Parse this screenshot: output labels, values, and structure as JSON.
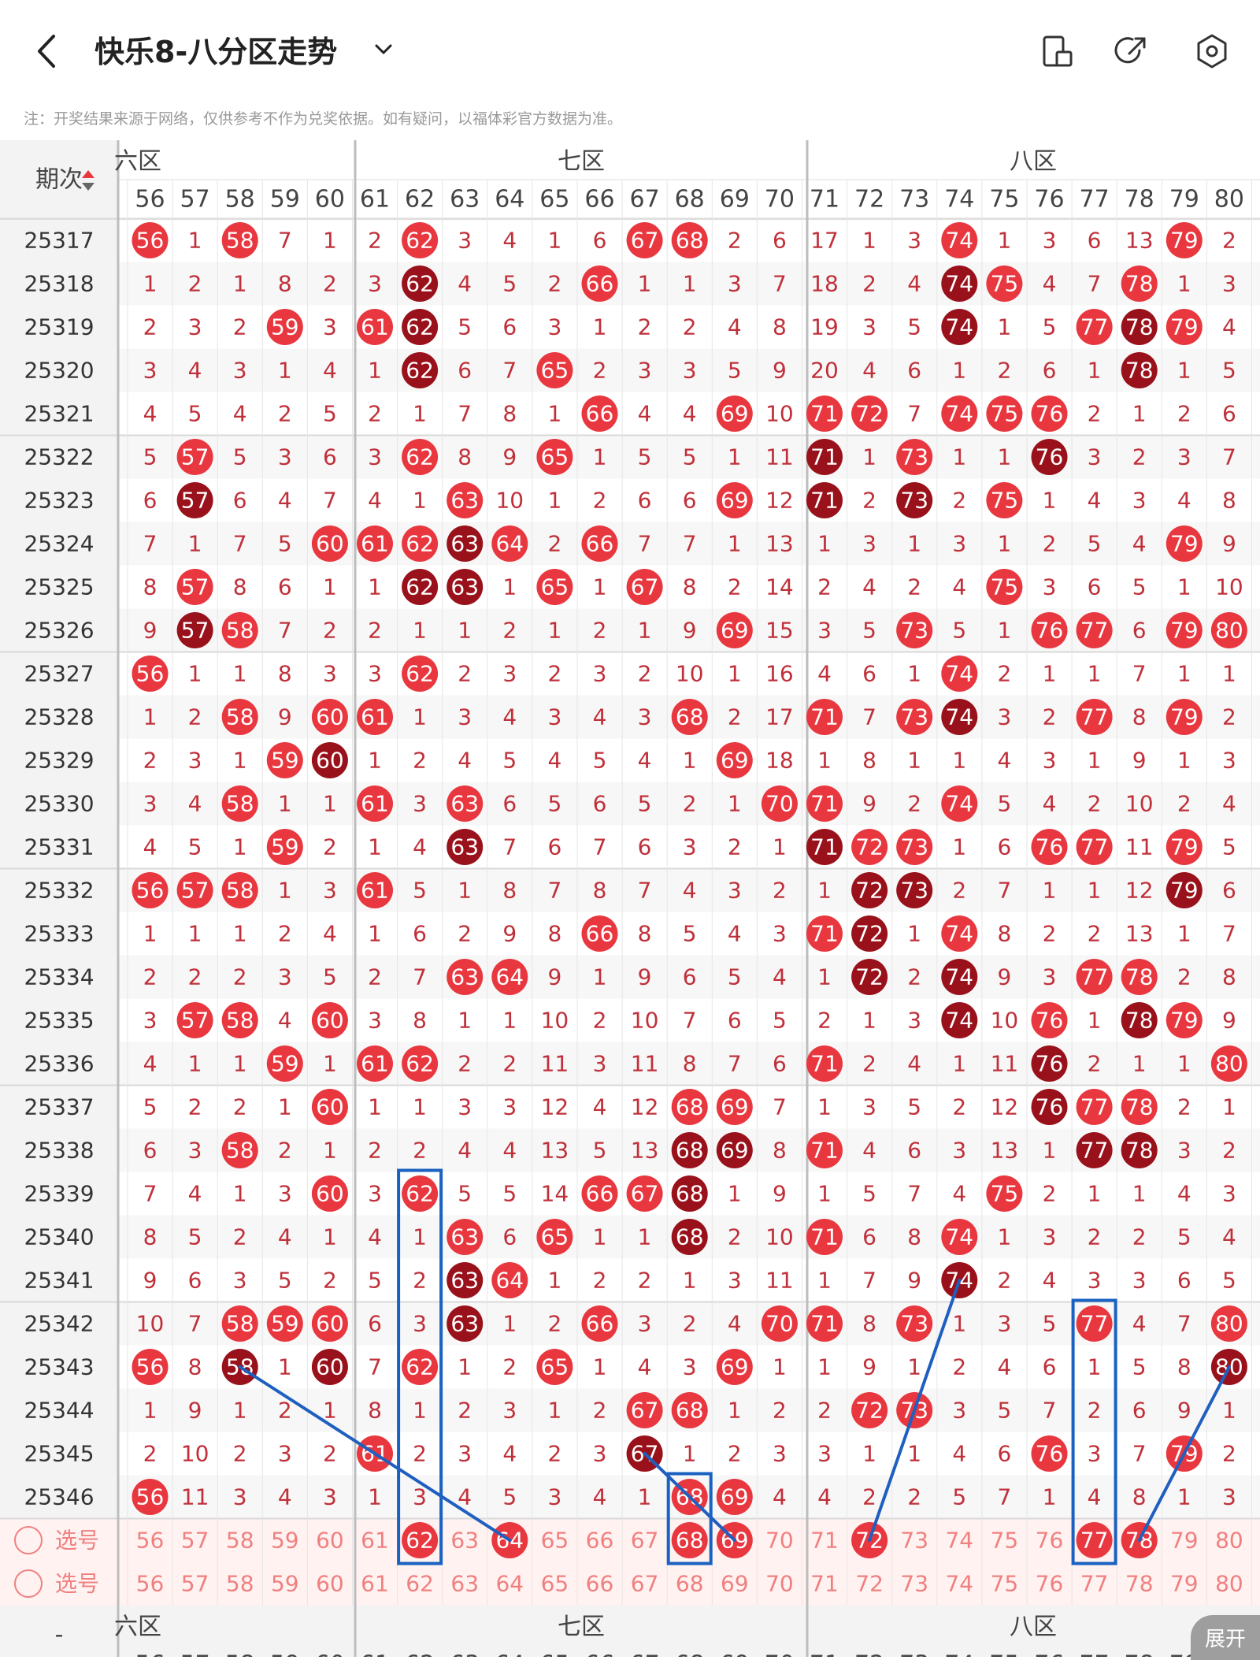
{
  "header": {
    "title": "快乐8-八分区走势"
  },
  "icons": {
    "back": "chevron-left-icon",
    "dropdown": "chevron-down-icon",
    "layout": "layout-icon",
    "share": "share-icon",
    "settings": "settings-icon"
  },
  "notice": "注：开奖结果来源于网络，仅供参考不作为兑奖依据。如有疑问，以福体彩官方数据为准。",
  "table": {
    "period_label": "期次",
    "zones": [
      {
        "name": "六区",
        "label": "六区"
      },
      {
        "name": "七区",
        "label": "七区"
      },
      {
        "name": "八区",
        "label": "八区"
      }
    ],
    "columns": [
      56,
      57,
      58,
      59,
      60,
      61,
      62,
      63,
      64,
      65,
      66,
      67,
      68,
      69,
      70,
      71,
      72,
      73,
      74,
      75,
      76,
      77,
      78,
      79,
      80
    ],
    "rows": [
      {
        "p": "25317",
        "v": [
          "56",
          1,
          "58",
          7,
          1,
          2,
          "62",
          3,
          4,
          1,
          6,
          "67",
          "68",
          2,
          6,
          17,
          1,
          3,
          "74",
          1,
          3,
          6,
          13,
          "79",
          2
        ]
      },
      {
        "p": "25318",
        "v": [
          1,
          2,
          1,
          8,
          2,
          3,
          "62",
          4,
          5,
          2,
          "66",
          1,
          1,
          3,
          7,
          18,
          2,
          4,
          "74",
          "75",
          4,
          7,
          "78",
          1,
          3
        ]
      },
      {
        "p": "25319",
        "v": [
          2,
          3,
          2,
          "59",
          3,
          "61",
          "62",
          5,
          6,
          3,
          1,
          2,
          2,
          4,
          8,
          19,
          3,
          5,
          "74",
          1,
          5,
          "77",
          "78",
          "79",
          4
        ]
      },
      {
        "p": "25320",
        "v": [
          3,
          4,
          3,
          1,
          4,
          1,
          "62",
          6,
          7,
          "65",
          2,
          3,
          3,
          5,
          9,
          20,
          4,
          6,
          1,
          2,
          6,
          1,
          "78",
          1,
          5
        ]
      },
      {
        "p": "25321",
        "v": [
          4,
          5,
          4,
          2,
          5,
          2,
          1,
          7,
          8,
          1,
          "66",
          4,
          4,
          "69",
          10,
          "71",
          "72",
          7,
          "74",
          "75",
          "76",
          2,
          1,
          2,
          6
        ]
      },
      {
        "p": "25322",
        "v": [
          5,
          "57",
          5,
          3,
          6,
          3,
          "62",
          8,
          9,
          "65",
          1,
          5,
          5,
          1,
          11,
          "71",
          1,
          "73",
          1,
          1,
          "76",
          3,
          2,
          3,
          7
        ]
      },
      {
        "p": "25323",
        "v": [
          6,
          "57",
          6,
          4,
          7,
          4,
          1,
          "63",
          10,
          1,
          2,
          6,
          6,
          "69",
          12,
          "71",
          2,
          "73",
          2,
          "75",
          1,
          4,
          3,
          4,
          8
        ]
      },
      {
        "p": "25324",
        "v": [
          7,
          1,
          7,
          5,
          "60",
          "61",
          "62",
          "63",
          "64",
          2,
          "66",
          7,
          7,
          1,
          13,
          1,
          3,
          1,
          3,
          1,
          2,
          5,
          4,
          "79",
          9
        ]
      },
      {
        "p": "25325",
        "v": [
          8,
          "57",
          8,
          6,
          1,
          1,
          "62",
          "63",
          1,
          "65",
          1,
          "67",
          8,
          2,
          14,
          2,
          4,
          2,
          4,
          "75",
          3,
          6,
          5,
          1,
          10
        ]
      },
      {
        "p": "25326",
        "v": [
          9,
          "57",
          "58",
          7,
          2,
          2,
          1,
          1,
          2,
          1,
          2,
          1,
          9,
          "69",
          15,
          3,
          5,
          "73",
          5,
          1,
          "76",
          "77",
          6,
          "79",
          "80"
        ]
      },
      {
        "p": "25327",
        "v": [
          "56",
          1,
          1,
          8,
          3,
          3,
          "62",
          2,
          3,
          2,
          3,
          2,
          10,
          1,
          16,
          4,
          6,
          1,
          "74",
          2,
          1,
          1,
          7,
          1,
          1
        ]
      },
      {
        "p": "25328",
        "v": [
          1,
          2,
          "58",
          9,
          "60",
          "61",
          1,
          3,
          4,
          3,
          4,
          3,
          "68",
          2,
          17,
          "71",
          7,
          "73",
          "74",
          3,
          2,
          "77",
          8,
          "79",
          2
        ]
      },
      {
        "p": "25329",
        "v": [
          2,
          3,
          1,
          "59",
          "60",
          1,
          2,
          4,
          5,
          4,
          5,
          4,
          1,
          "69",
          18,
          1,
          8,
          1,
          1,
          4,
          3,
          1,
          9,
          1,
          3
        ]
      },
      {
        "p": "25330",
        "v": [
          3,
          4,
          "58",
          1,
          1,
          "61",
          3,
          "63",
          6,
          5,
          6,
          5,
          2,
          1,
          "70",
          "71",
          9,
          2,
          "74",
          5,
          4,
          2,
          10,
          2,
          4
        ]
      },
      {
        "p": "25331",
        "v": [
          4,
          5,
          1,
          "59",
          2,
          1,
          4,
          "63",
          7,
          6,
          7,
          6,
          3,
          2,
          1,
          "71",
          "72",
          "73",
          1,
          6,
          "76",
          "77",
          11,
          "79",
          5
        ]
      },
      {
        "p": "25332",
        "v": [
          "56",
          "57",
          "58",
          1,
          3,
          "61",
          5,
          1,
          8,
          7,
          8,
          7,
          4,
          3,
          2,
          1,
          "72",
          "73",
          2,
          7,
          1,
          1,
          12,
          "79",
          6
        ]
      },
      {
        "p": "25333",
        "v": [
          1,
          1,
          1,
          2,
          4,
          1,
          6,
          2,
          9,
          8,
          "66",
          8,
          5,
          4,
          3,
          "71",
          "72",
          1,
          "74",
          8,
          2,
          2,
          13,
          1,
          7
        ]
      },
      {
        "p": "25334",
        "v": [
          2,
          2,
          2,
          3,
          5,
          2,
          7,
          "63",
          "64",
          9,
          1,
          9,
          6,
          5,
          4,
          1,
          "72",
          2,
          "74",
          9,
          3,
          "77",
          "78",
          2,
          8
        ]
      },
      {
        "p": "25335",
        "v": [
          3,
          "57",
          "58",
          4,
          "60",
          3,
          8,
          1,
          1,
          10,
          2,
          10,
          7,
          6,
          5,
          2,
          1,
          3,
          "74",
          10,
          "76",
          1,
          "78",
          "79",
          9
        ]
      },
      {
        "p": "25336",
        "v": [
          4,
          1,
          1,
          "59",
          1,
          "61",
          "62",
          2,
          2,
          11,
          3,
          11,
          8,
          7,
          6,
          "71",
          2,
          4,
          1,
          11,
          "76",
          2,
          1,
          1,
          "80"
        ]
      },
      {
        "p": "25337",
        "v": [
          5,
          2,
          2,
          1,
          "60",
          1,
          1,
          3,
          3,
          12,
          4,
          12,
          "68",
          "69",
          7,
          1,
          3,
          5,
          2,
          12,
          "76",
          "77",
          "78",
          2,
          1
        ]
      },
      {
        "p": "25338",
        "v": [
          6,
          3,
          "58",
          2,
          1,
          2,
          2,
          4,
          4,
          13,
          5,
          13,
          "68",
          "69",
          8,
          "71",
          4,
          6,
          3,
          13,
          1,
          "77",
          "78",
          3,
          2
        ]
      },
      {
        "p": "25339",
        "v": [
          7,
          4,
          1,
          3,
          "60",
          3,
          "62",
          5,
          5,
          14,
          "66",
          "67",
          "68",
          1,
          9,
          1,
          5,
          7,
          4,
          "75",
          2,
          1,
          1,
          4,
          3
        ]
      },
      {
        "p": "25340",
        "v": [
          8,
          5,
          2,
          4,
          1,
          4,
          1,
          "63",
          6,
          "65",
          1,
          1,
          "68",
          2,
          10,
          "71",
          6,
          8,
          "74",
          1,
          3,
          2,
          2,
          5,
          4
        ]
      },
      {
        "p": "25341",
        "v": [
          9,
          6,
          3,
          5,
          2,
          5,
          2,
          "63",
          "64",
          1,
          2,
          2,
          1,
          3,
          11,
          1,
          7,
          9,
          "74",
          2,
          4,
          3,
          3,
          6,
          5
        ]
      },
      {
        "p": "25342",
        "v": [
          10,
          7,
          "58",
          "59",
          "60",
          6,
          3,
          "63",
          1,
          2,
          "66",
          3,
          2,
          4,
          "70",
          "71",
          8,
          "73",
          1,
          3,
          5,
          "77",
          4,
          7,
          "80"
        ]
      },
      {
        "p": "25343",
        "v": [
          "56",
          8,
          "58",
          1,
          "60",
          7,
          "62",
          1,
          2,
          "65",
          1,
          4,
          3,
          "69",
          1,
          1,
          9,
          1,
          2,
          4,
          6,
          1,
          5,
          8,
          "80"
        ]
      },
      {
        "p": "25344",
        "v": [
          1,
          9,
          1,
          2,
          1,
          8,
          1,
          2,
          3,
          1,
          2,
          "67",
          "68",
          1,
          2,
          2,
          "72",
          "73",
          3,
          5,
          7,
          2,
          6,
          9,
          1
        ]
      },
      {
        "p": "25345",
        "v": [
          2,
          10,
          2,
          3,
          2,
          "61",
          2,
          3,
          4,
          2,
          3,
          "67",
          1,
          2,
          3,
          3,
          1,
          1,
          4,
          6,
          "76",
          3,
          7,
          "79",
          2
        ]
      },
      {
        "p": "25346",
        "v": [
          "56",
          11,
          3,
          4,
          3,
          1,
          3,
          4,
          5,
          3,
          4,
          1,
          "68",
          "69",
          4,
          4,
          2,
          2,
          5,
          7,
          1,
          4,
          8,
          1,
          3
        ]
      }
    ],
    "select_rows": [
      {
        "label": "选号",
        "picked": [
          "62",
          "64",
          "68",
          "69",
          "72",
          "77",
          "78"
        ]
      },
      {
        "label": "选号",
        "picked": []
      }
    ],
    "footer_period": "-"
  },
  "expand_button": "展开",
  "colors": {
    "ball_red": "#e8373f",
    "ball_dark": "#99111a",
    "miss_text": "#c0303a",
    "selection_text": "#f08080",
    "box_blue": "#1a62c2",
    "line_blue": "#1f5fbf"
  }
}
